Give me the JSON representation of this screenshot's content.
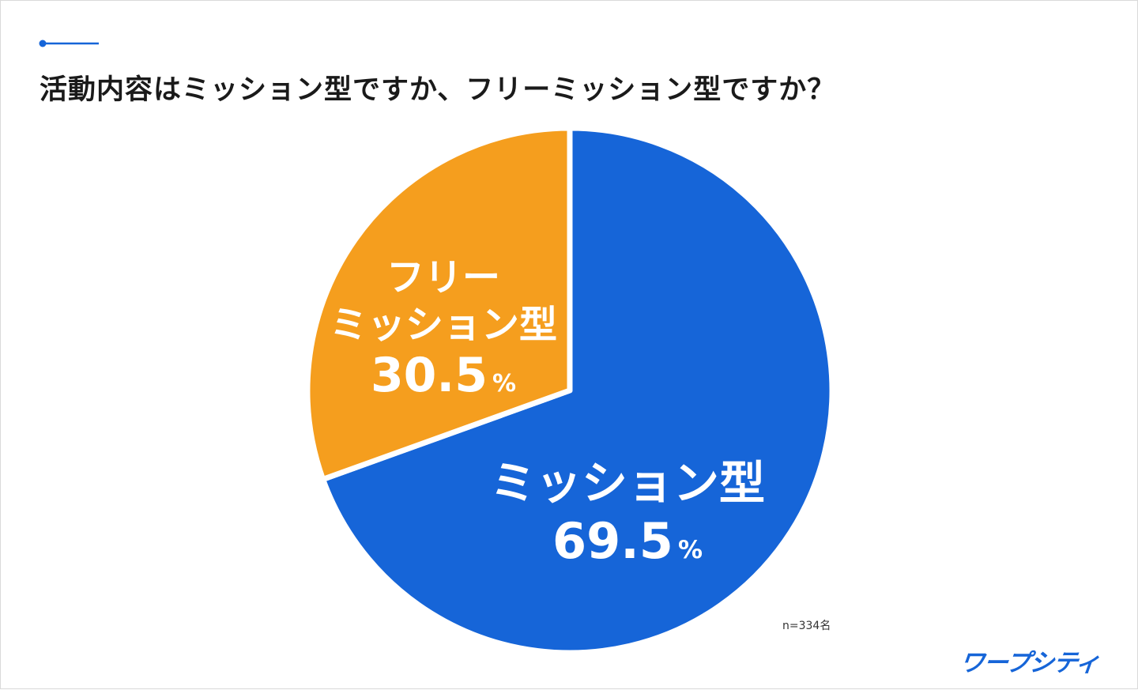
{
  "title": "活動内容はミッション型ですか、フリーミッション型ですか？",
  "note": "n=334名",
  "logo": "ワープシティ",
  "chart_data": {
    "type": "pie",
    "title": "活動内容はミッション型ですか、フリーミッション型ですか？",
    "categories": [
      "ミッション型",
      "フリーミッション型"
    ],
    "values": [
      69.5,
      30.5
    ],
    "unit": "%",
    "colors": [
      "#1665d8",
      "#f59e1e"
    ],
    "labels": [
      {
        "lines": [
          "ミッション型"
        ],
        "value": "69.5",
        "unit": "%"
      },
      {
        "lines": [
          "フリー",
          "ミッション型"
        ],
        "value": "30.5",
        "unit": "%"
      }
    ],
    "sample_size": "n=334名"
  },
  "colors": {
    "accent": "#1665d8",
    "background": "#ffffff"
  }
}
